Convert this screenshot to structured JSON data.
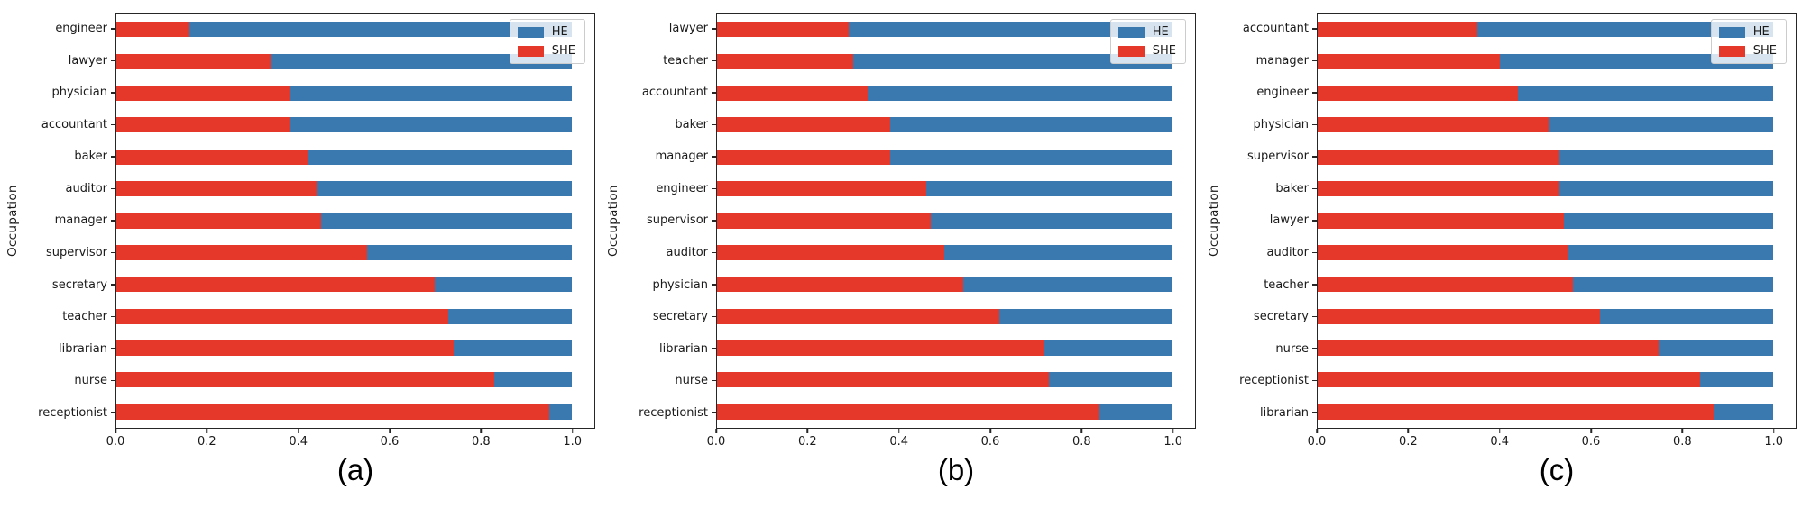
{
  "figure": {
    "ylabel": "Occupation",
    "x_tick_labels": [
      "0.0",
      "0.2",
      "0.4",
      "0.6",
      "0.8",
      "1.0"
    ],
    "colors": {
      "he_blue": "#3a79b0",
      "she_red": "#e6372b",
      "spine": "#262626",
      "legend_border": "#cccccc"
    },
    "legend": {
      "entries": [
        {
          "label": "HE",
          "color": "#3a79b0"
        },
        {
          "label": "SHE",
          "color": "#e6372b"
        }
      ],
      "position": "upper right"
    }
  },
  "chart_data": [
    {
      "type": "bar",
      "orientation": "horizontal",
      "stacked": true,
      "caption": "(a)",
      "ylabel": "Occupation",
      "xlim": [
        0,
        1.05
      ],
      "x_ticks": [
        0.0,
        0.2,
        0.4,
        0.6,
        0.8,
        1.0
      ],
      "grid": false,
      "legend_position": "upper right",
      "categories": [
        "engineer",
        "lawyer",
        "physician",
        "accountant",
        "baker",
        "auditor",
        "manager",
        "supervisor",
        "secretary",
        "teacher",
        "librarian",
        "nurse",
        "receptionist"
      ],
      "series": [
        {
          "name": "SHE",
          "color": "#e6372b",
          "values": [
            0.16,
            0.34,
            0.38,
            0.38,
            0.42,
            0.44,
            0.45,
            0.55,
            0.7,
            0.73,
            0.74,
            0.83,
            0.95
          ]
        },
        {
          "name": "HE",
          "color": "#3a79b0",
          "values": [
            0.84,
            0.66,
            0.62,
            0.62,
            0.58,
            0.56,
            0.55,
            0.45,
            0.3,
            0.27,
            0.26,
            0.17,
            0.05
          ]
        }
      ]
    },
    {
      "type": "bar",
      "orientation": "horizontal",
      "stacked": true,
      "caption": "(b)",
      "ylabel": "Occupation",
      "xlim": [
        0,
        1.05
      ],
      "x_ticks": [
        0.0,
        0.2,
        0.4,
        0.6,
        0.8,
        1.0
      ],
      "grid": false,
      "legend_position": "upper right",
      "categories": [
        "lawyer",
        "teacher",
        "accountant",
        "baker",
        "manager",
        "engineer",
        "supervisor",
        "auditor",
        "physician",
        "secretary",
        "librarian",
        "nurse",
        "receptionist"
      ],
      "series": [
        {
          "name": "SHE",
          "color": "#e6372b",
          "values": [
            0.29,
            0.3,
            0.33,
            0.38,
            0.38,
            0.46,
            0.47,
            0.5,
            0.54,
            0.62,
            0.72,
            0.73,
            0.84
          ]
        },
        {
          "name": "HE",
          "color": "#3a79b0",
          "values": [
            0.71,
            0.7,
            0.67,
            0.62,
            0.62,
            0.54,
            0.53,
            0.5,
            0.46,
            0.38,
            0.28,
            0.27,
            0.16
          ]
        }
      ]
    },
    {
      "type": "bar",
      "orientation": "horizontal",
      "stacked": true,
      "caption": "(c)",
      "ylabel": "Occupation",
      "xlim": [
        0,
        1.05
      ],
      "x_ticks": [
        0.0,
        0.2,
        0.4,
        0.6,
        0.8,
        1.0
      ],
      "grid": false,
      "legend_position": "upper right",
      "categories": [
        "accountant",
        "manager",
        "engineer",
        "physician",
        "supervisor",
        "baker",
        "lawyer",
        "auditor",
        "teacher",
        "secretary",
        "nurse",
        "receptionist",
        "librarian"
      ],
      "series": [
        {
          "name": "SHE",
          "color": "#e6372b",
          "values": [
            0.35,
            0.4,
            0.44,
            0.51,
            0.53,
            0.53,
            0.54,
            0.55,
            0.56,
            0.62,
            0.75,
            0.84,
            0.87
          ]
        },
        {
          "name": "HE",
          "color": "#3a79b0",
          "values": [
            0.65,
            0.6,
            0.56,
            0.49,
            0.47,
            0.47,
            0.46,
            0.45,
            0.44,
            0.38,
            0.25,
            0.16,
            0.13
          ]
        }
      ]
    }
  ]
}
